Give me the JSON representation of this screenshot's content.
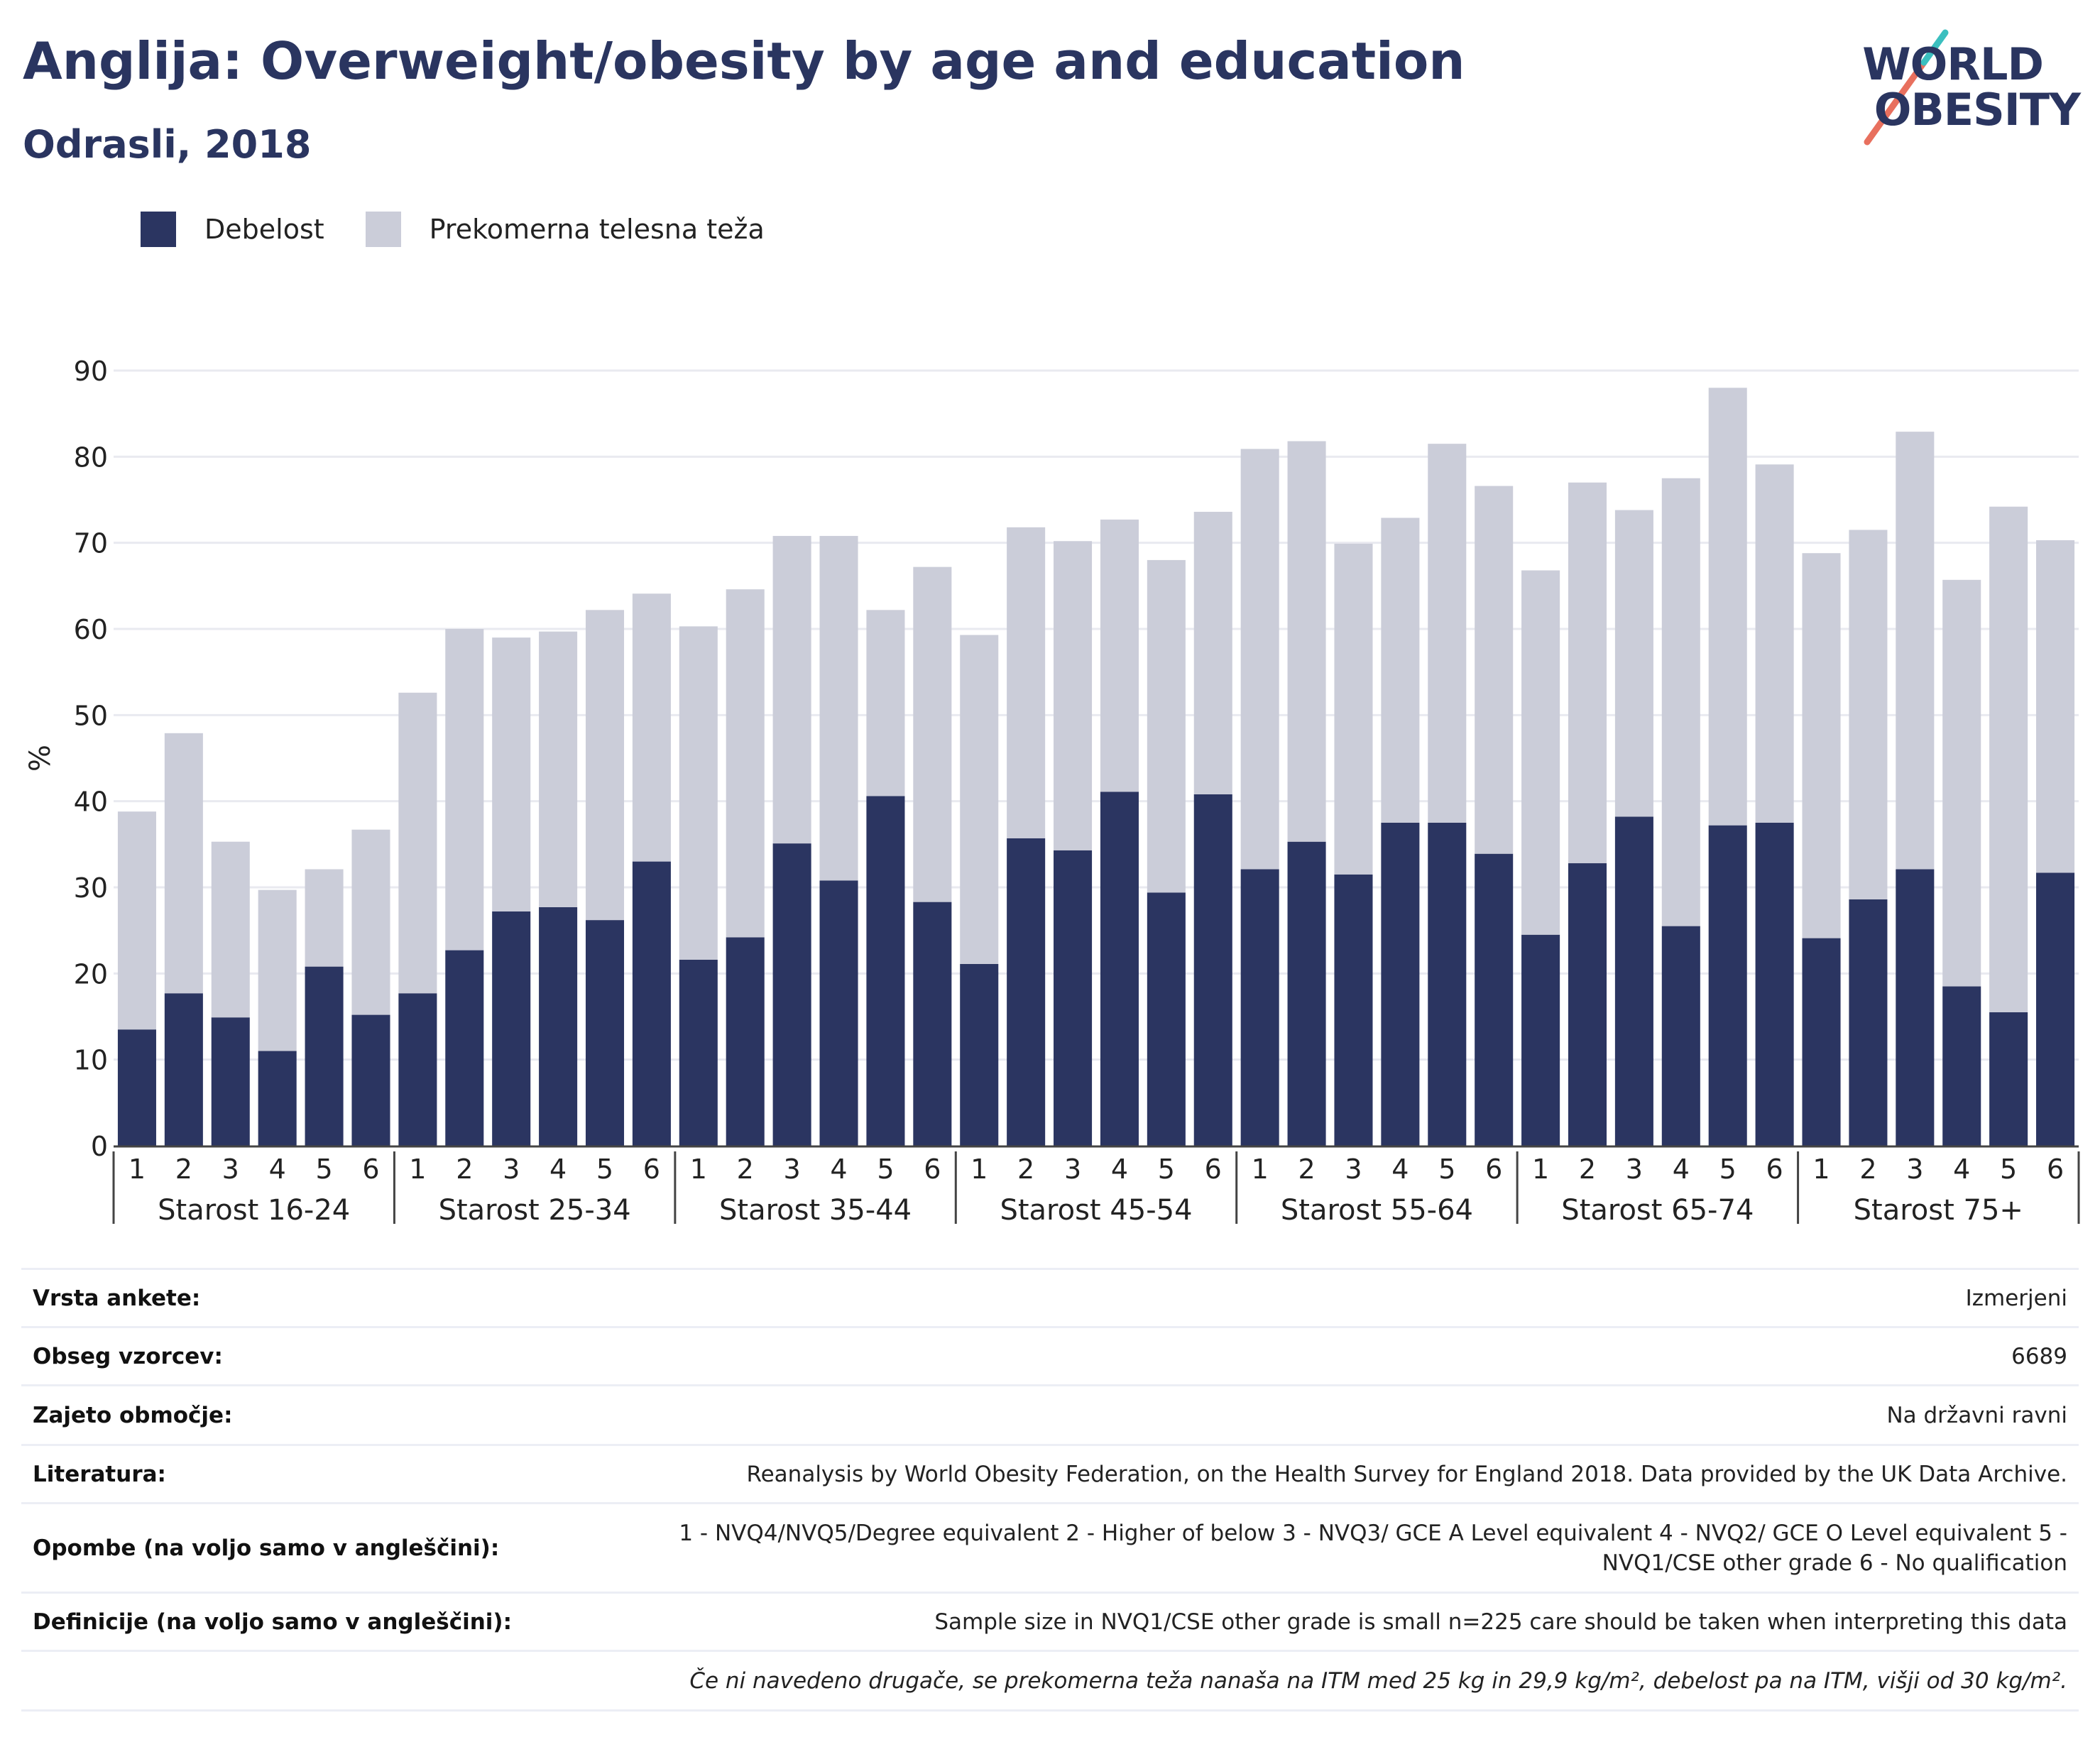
{
  "header": {
    "title": "Anglija: Overweight/obesity by age and education",
    "subtitle": "Odrasli, 2018"
  },
  "logo": {
    "line1": "WORLD",
    "line2": "OBESITY",
    "colors": [
      "#e8705e",
      "#3bbfbf",
      "#2a3560"
    ]
  },
  "legend": [
    {
      "label": "Debelost",
      "color": "#2b3561"
    },
    {
      "label": "Prekomerna telesna teža",
      "color": "#cbcdd9"
    }
  ],
  "chart_data": {
    "type": "bar",
    "stacked": true,
    "ylabel": "%",
    "ylim": [
      0,
      90
    ],
    "yticks": [
      0,
      10,
      20,
      30,
      40,
      50,
      60,
      70,
      80,
      90
    ],
    "grid": true,
    "legend_position": "top-left",
    "groups": [
      "Starost 16-24",
      "Starost 25-34",
      "Starost 35-44",
      "Starost 45-54",
      "Starost 55-64",
      "Starost 65-74",
      "Starost 75+"
    ],
    "categories": [
      "1",
      "2",
      "3",
      "4",
      "5",
      "6"
    ],
    "series": [
      {
        "name": "Debelost",
        "color": "#2b3561",
        "values": [
          [
            13.5,
            17.7,
            14.9,
            11.0,
            20.8,
            15.2
          ],
          [
            17.7,
            22.7,
            27.2,
            27.7,
            26.2,
            33.0
          ],
          [
            21.6,
            24.2,
            35.1,
            30.8,
            40.6,
            28.3
          ],
          [
            21.1,
            35.7,
            34.3,
            41.1,
            29.4,
            40.8
          ],
          [
            32.1,
            35.3,
            31.5,
            37.5,
            37.5,
            33.9
          ],
          [
            24.5,
            32.8,
            38.2,
            25.5,
            37.2,
            37.5
          ],
          [
            24.1,
            28.6,
            32.1,
            18.5,
            15.5,
            31.7
          ]
        ]
      },
      {
        "name": "Prekomerna telesna teža",
        "color": "#cbcdd9",
        "values": [
          [
            25.3,
            30.2,
            20.4,
            18.7,
            11.3,
            21.5
          ],
          [
            34.9,
            37.3,
            31.8,
            32.0,
            36.0,
            31.1
          ],
          [
            38.7,
            40.4,
            35.7,
            40.0,
            21.6,
            38.9
          ],
          [
            38.2,
            36.1,
            35.9,
            31.6,
            38.6,
            32.8
          ],
          [
            48.8,
            46.5,
            38.4,
            35.4,
            44.0,
            42.7
          ],
          [
            42.3,
            44.2,
            35.6,
            52.0,
            50.8,
            41.6
          ],
          [
            44.7,
            42.9,
            50.8,
            47.2,
            58.7,
            38.6
          ]
        ]
      }
    ]
  },
  "info_table": [
    {
      "label": "Vrsta ankete:",
      "value": "Izmerjeni"
    },
    {
      "label": "Obseg vzorcev:",
      "value": "6689"
    },
    {
      "label": "Zajeto območje:",
      "value": "Na državni ravni"
    },
    {
      "label": "Literatura:",
      "value": "Reanalysis by World Obesity Federation, on the Health Survey for England 2018. Data provided by the UK Data Archive."
    },
    {
      "label": "Opombe (na voljo samo v angleščini):",
      "value": "1 - NVQ4/NVQ5/Degree equivalent 2 - Higher of below 3 - NVQ3/ GCE A Level equivalent 4 - NVQ2/ GCE O Level equivalent 5 - NVQ1/CSE other grade 6 - No qualification"
    },
    {
      "label": "Definicije (na voljo samo v angleščini):",
      "value": "Sample size in NVQ1/CSE other grade is small n=225 care should be taken when interpreting this data"
    }
  ],
  "footnote": "Če ni navedeno drugače, se prekomerna teža nanaša na ITM med 25 kg in 29,9 kg/m², debelost pa na ITM, višji od 30 kg/m²."
}
